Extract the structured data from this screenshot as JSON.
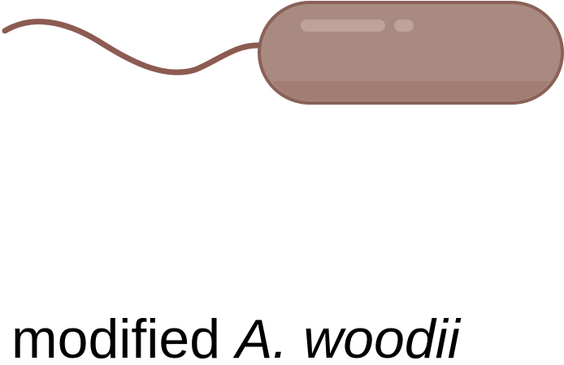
{
  "caption": {
    "prefix": "modified",
    "species": "A. woodii"
  },
  "colors": {
    "flagellum": "#8c5b52",
    "body_fill": "#a88a80",
    "body_outline": "#8a6158",
    "body_shadow": "#9b7268",
    "highlight": "#bfa29a",
    "text": "#000000"
  },
  "icons": [
    "rod-bacterium-icon",
    "flagellum"
  ]
}
